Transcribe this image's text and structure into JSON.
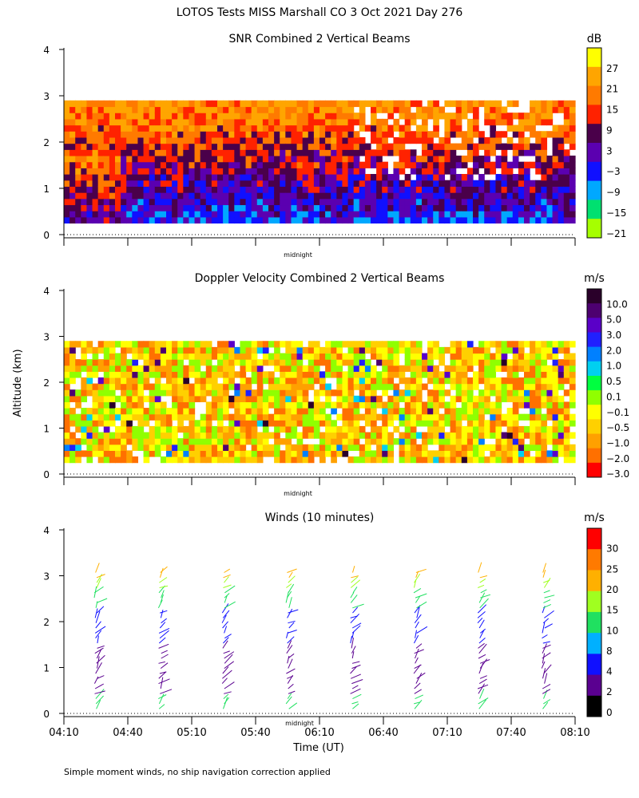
{
  "title": "LOTOS Tests MISS Marshall CO   3 Oct 2021 Day 276",
  "y_axis_label": "Altitude (km)",
  "x_axis_label": "Time (UT)",
  "midnight_label": "midnight",
  "footnote": "Simple moment winds, no ship navigation correction applied",
  "panels": {
    "snr": {
      "title": "SNR Combined 2 Vertical Beams",
      "unit": "dB",
      "colorbar": {
        "labels": [
          "27",
          "21",
          "15",
          "9",
          "3",
          "−3",
          "−9",
          "−15",
          "−21"
        ],
        "colors": [
          "#ffff00",
          "#ffa500",
          "#ff7a00",
          "#ff2200",
          "#4a004a",
          "#5b00b0",
          "#1010ff",
          "#00a8ff",
          "#00e070",
          "#a6ff00"
        ]
      }
    },
    "doppler": {
      "title": "Doppler Velocity Combined 2 Vertical Beams",
      "unit": "m/s",
      "colorbar": {
        "labels": [
          "10.0",
          "5.0",
          "3.0",
          "2.0",
          "1.0",
          "0.5",
          "0.1",
          "−0.1",
          "−0.5",
          "−1.0",
          "−2.0",
          "−3.0"
        ],
        "colors": [
          "#2a002a",
          "#4d0070",
          "#5a00c8",
          "#2020ff",
          "#0080ff",
          "#00d0f0",
          "#00ff40",
          "#90ff00",
          "#ffff00",
          "#ffd000",
          "#ffa000",
          "#ff7000",
          "#ff0000"
        ]
      }
    },
    "winds": {
      "title": "Winds (10 minutes)",
      "unit": "m/s",
      "colorbar": {
        "labels": [
          "30",
          "25",
          "20",
          "15",
          "10",
          "8",
          "4",
          "2",
          "0"
        ],
        "colors": [
          "#ff0000",
          "#ff7a00",
          "#ffb000",
          "#a0ff20",
          "#20e060",
          "#00b0ff",
          "#1010ff",
          "#5a0090",
          "#000000"
        ]
      }
    }
  },
  "chart_data": {
    "type": "heatmap",
    "x_ticks": [
      "04:10",
      "04:40",
      "05:10",
      "05:40",
      "06:10",
      "06:40",
      "07:10",
      "07:40",
      "08:10"
    ],
    "x_range": [
      "04:10",
      "08:10"
    ],
    "y_range_km": [
      0,
      4
    ],
    "y_ticks": [
      "0",
      "1",
      "2",
      "3",
      "4"
    ],
    "wind_profile_times": [
      "04:25",
      "04:55",
      "05:25",
      "05:55",
      "06:25",
      "06:55",
      "07:25",
      "07:55"
    ]
  }
}
